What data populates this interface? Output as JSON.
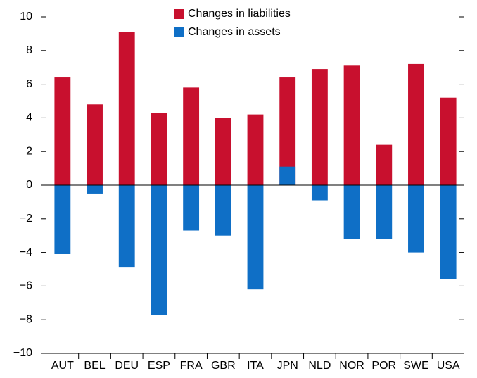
{
  "chart_data": {
    "type": "bar",
    "categories": [
      "AUT",
      "BEL",
      "DEU",
      "ESP",
      "FRA",
      "GBR",
      "ITA",
      "JPN",
      "NLD",
      "NOR",
      "POR",
      "SWE",
      "USA"
    ],
    "series": [
      {
        "name": "Changes in liabilities",
        "color": "#c8102e",
        "values": [
          6.4,
          4.8,
          9.1,
          4.3,
          5.8,
          4.0,
          4.2,
          6.4,
          6.9,
          7.1,
          2.4,
          7.2,
          5.2
        ]
      },
      {
        "name": "Changes in assets",
        "color": "#0f6fc6",
        "values": [
          -4.1,
          -0.5,
          -4.9,
          -7.7,
          -2.7,
          -3.0,
          -6.2,
          1.1,
          -0.9,
          -3.2,
          -3.2,
          -4.0,
          -5.6
        ]
      }
    ],
    "ylim": [
      -10,
      10
    ],
    "yticks": [
      {
        "value": -10,
        "label": "−10"
      },
      {
        "value": -8,
        "label": "−8"
      },
      {
        "value": -6,
        "label": "−6"
      },
      {
        "value": -4,
        "label": "−4"
      },
      {
        "value": -2,
        "label": "−2"
      },
      0,
      2,
      4,
      6,
      8,
      10
    ],
    "legend": "top"
  }
}
